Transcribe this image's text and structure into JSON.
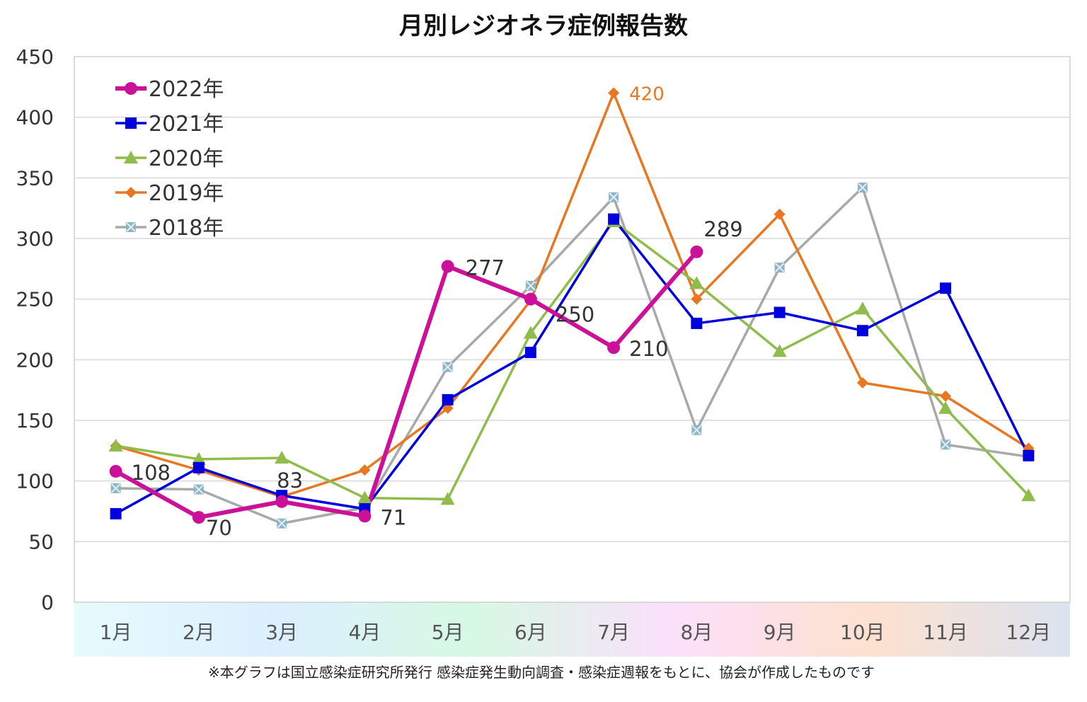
{
  "chart_data": {
    "type": "line",
    "title": "月別レジオネラ症例報告数",
    "footnote": "※本グラフは国立感染症研究所発行 感染症発生動向調査・感染症週報をもとに、協会が作成したものです",
    "categories": [
      "1月",
      "2月",
      "3月",
      "4月",
      "5月",
      "6月",
      "7月",
      "8月",
      "9月",
      "10月",
      "11月",
      "12月"
    ],
    "ylim": [
      0,
      450
    ],
    "yticks": [
      "0",
      "50",
      "100",
      "150",
      "200",
      "250",
      "300",
      "350",
      "400",
      "450"
    ],
    "grid": true,
    "legend_position": "top-left",
    "series": [
      {
        "name": "2022年",
        "color": "#cc1199",
        "marker": "circle",
        "values": [
          108,
          70,
          83,
          71,
          277,
          250,
          210,
          289,
          null,
          null,
          null,
          null
        ]
      },
      {
        "name": "2021年",
        "color": "#0000dd",
        "marker": "square",
        "values": [
          73,
          111,
          88,
          77,
          167,
          206,
          316,
          230,
          239,
          224,
          259,
          121
        ]
      },
      {
        "name": "2020年",
        "color": "#8fbc4a",
        "marker": "triangle",
        "values": [
          129,
          118,
          119,
          86,
          85,
          222,
          314,
          263,
          207,
          242,
          160,
          88
        ]
      },
      {
        "name": "2019年",
        "color": "#e87722",
        "marker": "diamond",
        "values": [
          129,
          109,
          87,
          109,
          160,
          249,
          420,
          250,
          320,
          181,
          170,
          127
        ]
      },
      {
        "name": "2018年",
        "color": "#a9a9a9",
        "marker": "x-square",
        "values": [
          94,
          93,
          65,
          78,
          194,
          261,
          334,
          142,
          276,
          342,
          130,
          120
        ]
      }
    ],
    "data_labels": [
      {
        "series": 0,
        "index": 0,
        "text": "108"
      },
      {
        "series": 0,
        "index": 1,
        "text": "70"
      },
      {
        "series": 0,
        "index": 2,
        "text": "83"
      },
      {
        "series": 0,
        "index": 3,
        "text": "71"
      },
      {
        "series": 0,
        "index": 4,
        "text": "277"
      },
      {
        "series": 0,
        "index": 5,
        "text": "250"
      },
      {
        "series": 0,
        "index": 6,
        "text": "210"
      },
      {
        "series": 0,
        "index": 7,
        "text": "289"
      },
      {
        "series": 3,
        "index": 6,
        "text": "420"
      }
    ]
  }
}
